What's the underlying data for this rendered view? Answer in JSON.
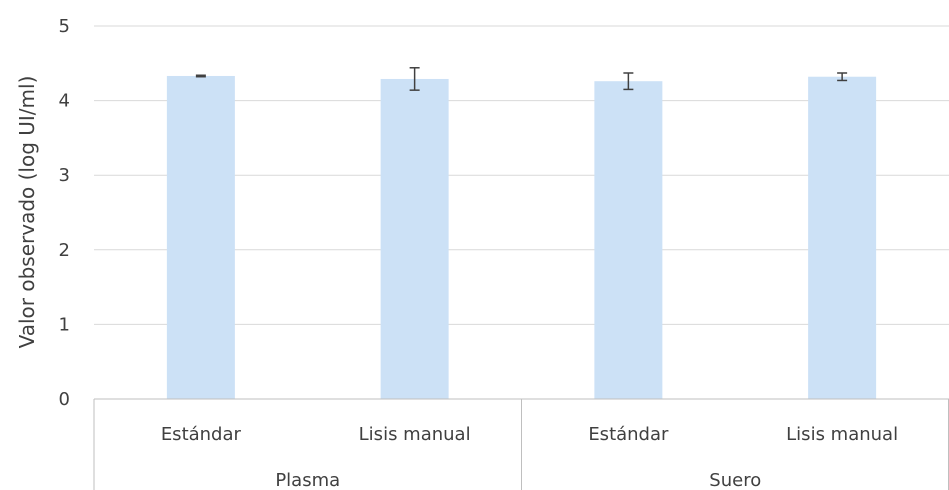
{
  "chart_data": {
    "type": "bar",
    "ylabel": "Valor observado (log UI/ml)",
    "xlabel": "",
    "ylim": [
      0,
      5
    ],
    "yticks": [
      0,
      1,
      2,
      3,
      4,
      5
    ],
    "grid": true,
    "groups": [
      {
        "label": "Plasma",
        "categories": [
          "Estándar",
          "Lisis manual"
        ]
      },
      {
        "label": "Suero",
        "categories": [
          "Estándar",
          "Lisis manual"
        ]
      }
    ],
    "categories": [
      "Estándar",
      "Lisis manual",
      "Estándar",
      "Lisis manual"
    ],
    "values": [
      4.33,
      4.29,
      4.26,
      4.32
    ],
    "errors": [
      0.01,
      0.15,
      0.11,
      0.05
    ],
    "bar_color": "#cce1f6"
  }
}
